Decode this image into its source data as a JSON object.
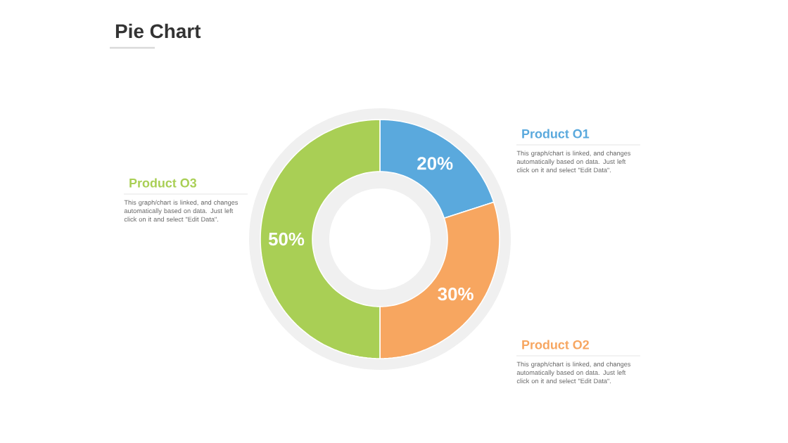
{
  "chart_data": {
    "type": "donut",
    "title": "Pie Chart",
    "categories": [
      "Product O1",
      "Product O2",
      "Product O3"
    ],
    "values": [
      20,
      30,
      50
    ],
    "value_labels": [
      "20%",
      "30%",
      "50%"
    ],
    "colors": [
      "#5aa9dd",
      "#f7a660",
      "#a9cf55"
    ],
    "annotations": [
      "This graph/chart is linked, and changes automatically based on data. Just left click on it and select \"Edit Data\".",
      "This graph/chart is linked, and changes automatically based on data. Just left click on it and select \"Edit Data\".",
      "This graph/chart is linked, and changes automatically based on data. Just left click on it and select \"Edit Data\"."
    ]
  }
}
